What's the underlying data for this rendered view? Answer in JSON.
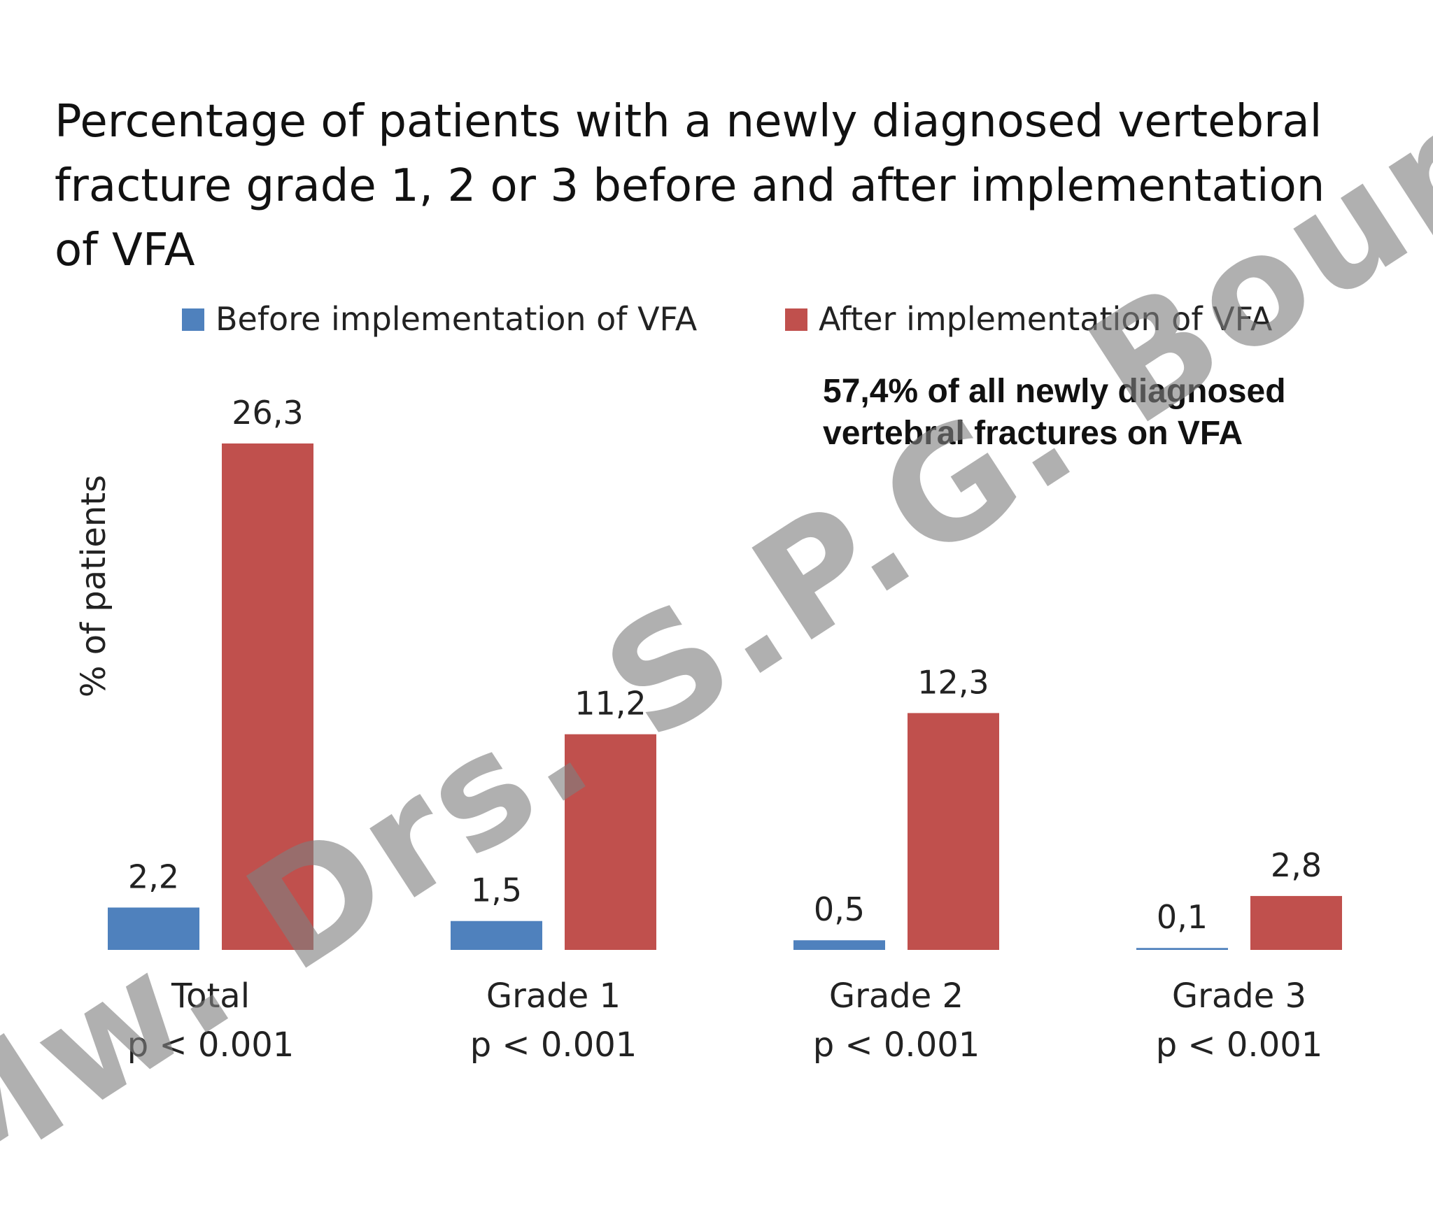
{
  "title_lines": [
    "Percentage of patients with a newly diagnosed vertebral",
    "fracture grade 1, 2 or 3 before and after implementation",
    "of VFA"
  ],
  "annotation_lines": [
    "57,4% of all newly diagnosed",
    "vertebral fractures on VFA"
  ],
  "watermark": "Mw. Drs. S.P.G. Bours",
  "chart_data": {
    "type": "bar",
    "title": "Percentage of patients with a newly diagnosed vertebral fracture grade 1, 2 or 3 before and after implementation of VFA",
    "ylabel": "% of patients",
    "xlabel": "",
    "categories": [
      "Total",
      "Grade 1",
      "Grade 2",
      "Grade 3"
    ],
    "p_values": [
      "p < 0.001",
      "p < 0.001",
      "p < 0.001",
      "p < 0.001"
    ],
    "series": [
      {
        "name": "Before  implementation of VFA",
        "color": "#4f81bd",
        "values": [
          2.2,
          1.5,
          0.5,
          0.1
        ],
        "labels": [
          "2,2",
          "1,5",
          "0,5",
          "0,1"
        ]
      },
      {
        "name": "After implementation of VFA",
        "color": "#c0504d",
        "values": [
          26.3,
          11.2,
          12.3,
          2.8
        ],
        "labels": [
          "26,3",
          "11,2",
          "12,3",
          "2,8"
        ]
      }
    ],
    "ylim": [
      0,
      26.3
    ],
    "grid": false,
    "legend": "top"
  }
}
